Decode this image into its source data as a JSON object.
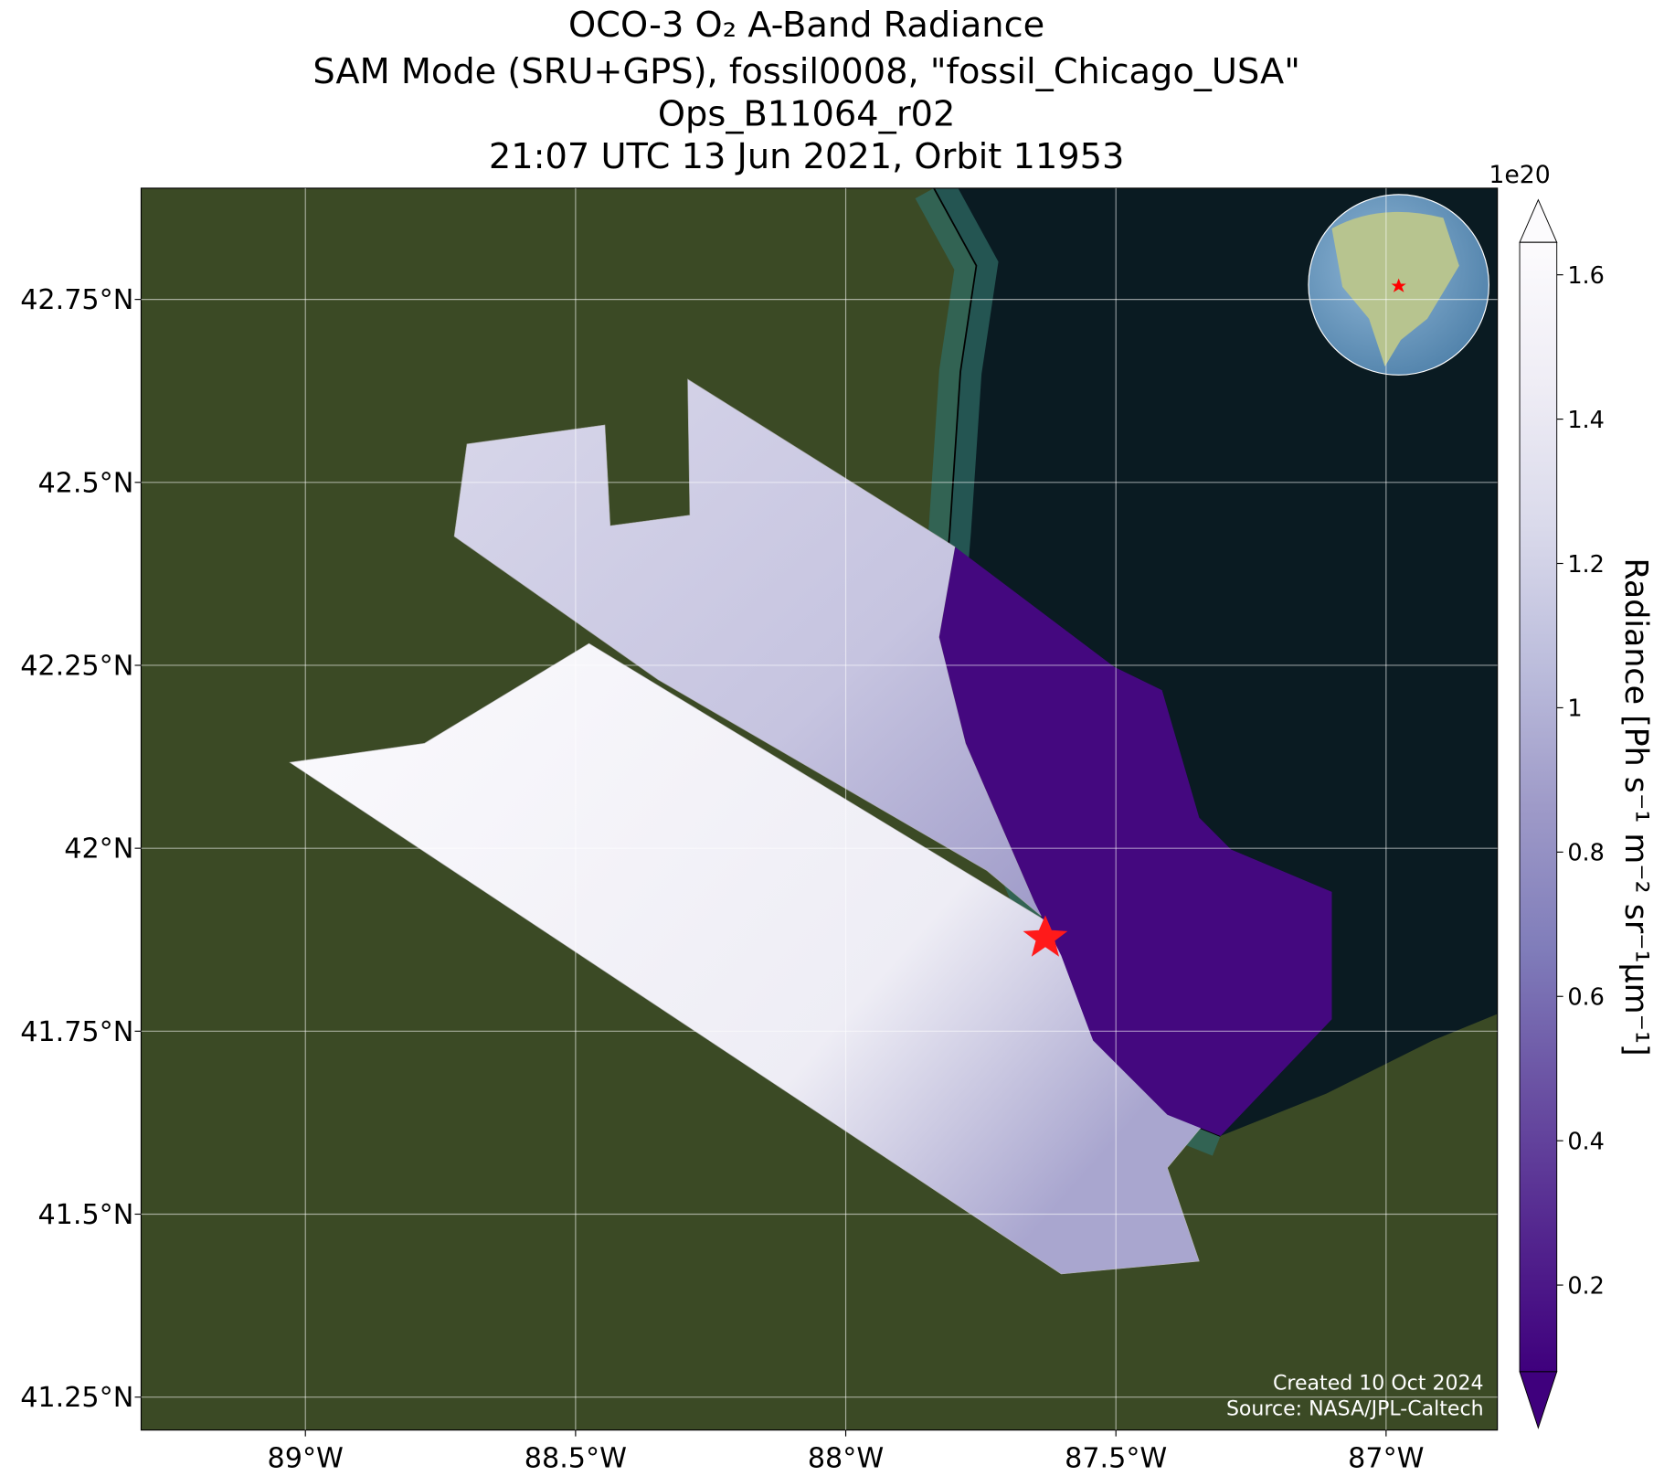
{
  "chart_data": {
    "type": "map",
    "title": [
      "OCO-3 O₂ A-Band Radiance",
      "SAM Mode (SRU+GPS), fossil0008, \"fossil_Chicago_USA\"",
      "Ops_B11064_r02",
      "21:07 UTC 13 Jun 2021, Orbit 11953"
    ],
    "xlim": [
      -89.304,
      -86.794
    ],
    "ylim": [
      41.205,
      42.902
    ],
    "xticks": [
      {
        "value": -89,
        "label": "89°W"
      },
      {
        "value": -88.5,
        "label": "88.5°W"
      },
      {
        "value": -88,
        "label": "88°W"
      },
      {
        "value": -87.5,
        "label": "87.5°W"
      },
      {
        "value": -87,
        "label": "87°W"
      }
    ],
    "yticks": [
      {
        "value": 41.25,
        "label": "41.25°N"
      },
      {
        "value": 41.5,
        "label": "41.5°N"
      },
      {
        "value": 41.75,
        "label": "41.75°N"
      },
      {
        "value": 42,
        "label": "42°N"
      },
      {
        "value": 42.25,
        "label": "42.25°N"
      },
      {
        "value": 42.5,
        "label": "42.5°N"
      },
      {
        "value": 42.75,
        "label": "42.75°N"
      }
    ],
    "grid": true,
    "colorbar": {
      "label": "Radiance [Ph s⁻¹ m⁻² sr⁻¹μm⁻¹]",
      "offset_label": "1e20",
      "lim": [
        0.08,
        1.645
      ],
      "ticks": [
        0.2,
        0.4,
        0.6,
        0.8,
        1.0,
        1.2,
        1.4,
        1.6
      ],
      "colormap": "Purples",
      "extend": "both"
    },
    "annotations": [
      "Created 10 Oct 2024",
      "Source: NASA/JPL-Caltech"
    ]
  }
}
